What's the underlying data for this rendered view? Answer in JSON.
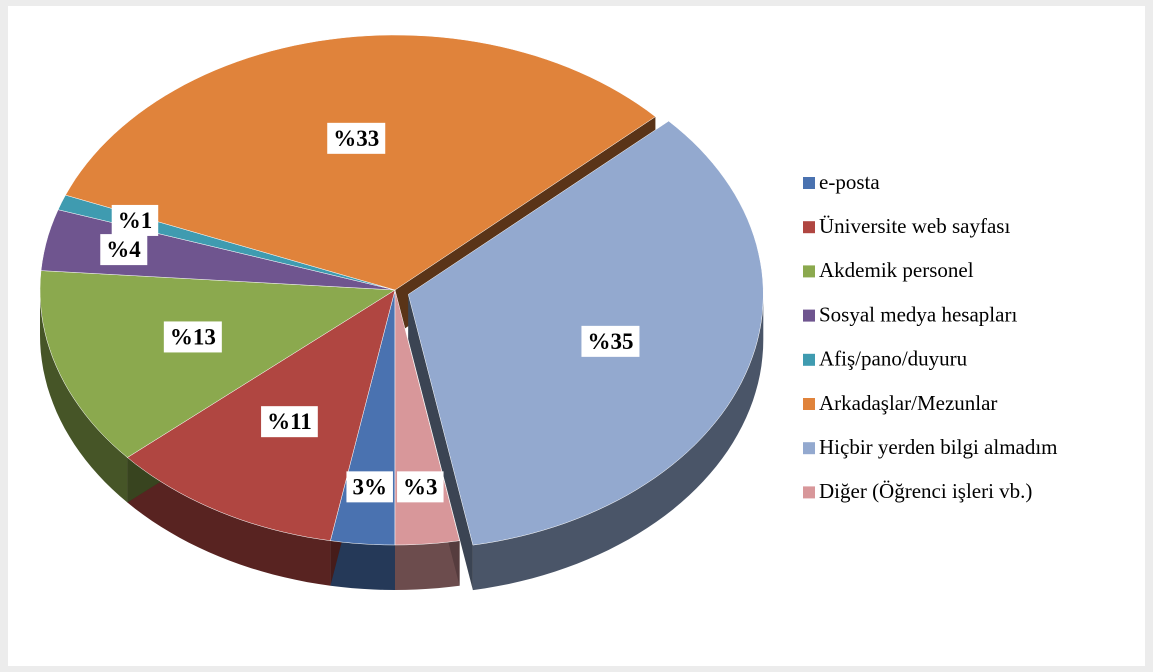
{
  "chart_data": {
    "type": "pie",
    "categories": [
      "e-posta",
      "Üniversite web sayfası",
      "Akdemik personel",
      "Sosyal medya hesapları",
      "Afiş/pano/duyuru",
      "Arkadaşlar/Mezunlar",
      "Hiçbir yerden bilgi almadım",
      "Diğer (Öğrenci işleri vb.)"
    ],
    "values": [
      3,
      11,
      13,
      4,
      1,
      33,
      35,
      3
    ],
    "value_labels": [
      "3%",
      "%11",
      "%13",
      "%4",
      "%1",
      "%33",
      "%35",
      "%3"
    ],
    "colors": [
      "#4a72b0",
      "#b04641",
      "#8ba94e",
      "#6f558f",
      "#3f9bb0",
      "#e0833b",
      "#93a9cf",
      "#d8979a"
    ],
    "legend": "right"
  }
}
